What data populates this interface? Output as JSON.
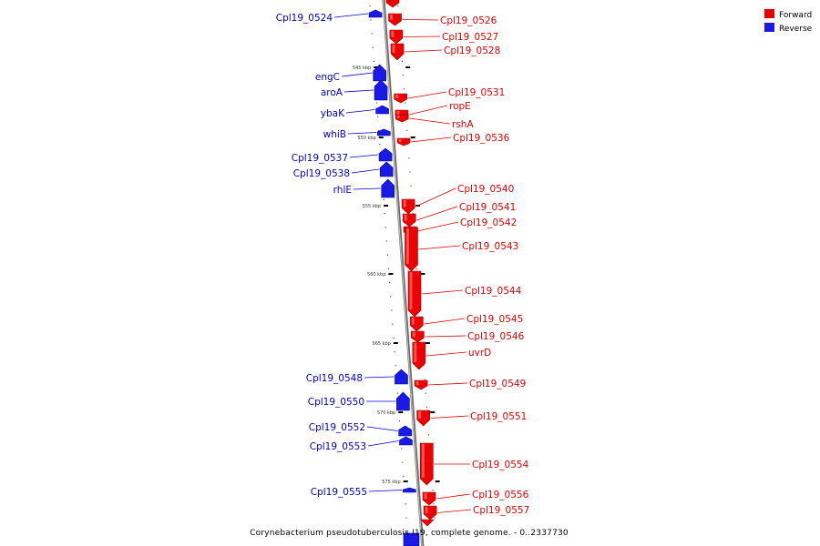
{
  "colors": {
    "forward": "#ee0000",
    "forward_dark": "#a00000",
    "reverse": "#1a1ae6",
    "reverse_dark": "#0000a0",
    "axis": "#8a8a8a",
    "forward_label": "#dd0000",
    "reverse_label": "#0000cc"
  },
  "legend": {
    "forward": "Forward",
    "reverse": "Reverse"
  },
  "caption": "Corynebacterium pseudotuberculosis I19, complete genome. - 0..2337730",
  "kbp_ticks": [
    {
      "label": "545 kbp"
    },
    {
      "label": "550 kbp"
    },
    {
      "label": "555 kbp"
    },
    {
      "label": "560 kbp"
    },
    {
      "label": "565 kbp"
    },
    {
      "label": "570 kbp"
    },
    {
      "label": "575 kbp"
    }
  ],
  "reverse_genes": [
    {
      "name": "Cpl19_0524"
    },
    {
      "name": "engC"
    },
    {
      "name": "aroA"
    },
    {
      "name": "ybaK"
    },
    {
      "name": "whiB"
    },
    {
      "name": "Cpl19_0537"
    },
    {
      "name": "Cpl19_0538"
    },
    {
      "name": "rhlE"
    },
    {
      "name": "Cpl19_0548"
    },
    {
      "name": "Cpl19_0550"
    },
    {
      "name": "Cpl19_0552"
    },
    {
      "name": "Cpl19_0553"
    },
    {
      "name": "Cpl19_0555"
    }
  ],
  "forward_genes": [
    {
      "name": "Cpl19_0526"
    },
    {
      "name": "Cpl19_0527"
    },
    {
      "name": "Cpl19_0528"
    },
    {
      "name": "Cpl19_0531"
    },
    {
      "name": "ropE"
    },
    {
      "name": "rshA"
    },
    {
      "name": "Cpl19_0536"
    },
    {
      "name": "Cpl19_0540"
    },
    {
      "name": "Cpl19_0541"
    },
    {
      "name": "Cpl19_0542"
    },
    {
      "name": "Cpl19_0543"
    },
    {
      "name": "Cpl19_0544"
    },
    {
      "name": "Cpl19_0545"
    },
    {
      "name": "Cpl19_0546"
    },
    {
      "name": "uvrD"
    },
    {
      "name": "Cpl19_0549"
    },
    {
      "name": "Cpl19_0551"
    },
    {
      "name": "Cpl19_0554"
    },
    {
      "name": "Cpl19_0556"
    },
    {
      "name": "Cpl19_0557"
    }
  ]
}
